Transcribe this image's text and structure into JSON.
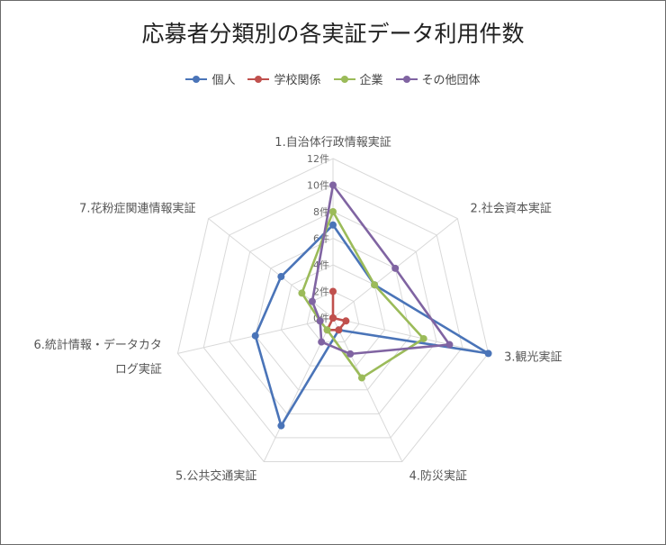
{
  "chart_data": {
    "type": "radar",
    "title": "応募者分類別の各実証データ利用件数",
    "categories": [
      [
        "1.自治体行政情報実証"
      ],
      [
        "2.社会資本実証"
      ],
      [
        "3.観光実証"
      ],
      [
        "4.防災実証"
      ],
      [
        "5.公共交通実証"
      ],
      [
        "6.統計情報・データカタ",
        "ログ実証"
      ],
      [
        "7.花粉症関連情報実証"
      ]
    ],
    "tick_labels": [
      "0件",
      "2件",
      "4件",
      "6件",
      "8件",
      "10件",
      "12件"
    ],
    "rlim": [
      0,
      12
    ],
    "grid": true,
    "legend_position": "top",
    "series": [
      {
        "name": "個人",
        "color": "#4a74b8",
        "values": [
          7,
          4,
          12,
          1,
          9,
          6,
          5
        ]
      },
      {
        "name": "学校関係",
        "color": "#c0504d",
        "values": [
          2,
          0,
          1,
          1,
          1,
          0,
          0
        ]
      },
      {
        "name": "企業",
        "color": "#9bbb59",
        "values": [
          8,
          4,
          7,
          5,
          1,
          1,
          3
        ]
      },
      {
        "name": "その他団体",
        "color": "#8064a2",
        "values": [
          10,
          6,
          9,
          3,
          2,
          1,
          2
        ]
      }
    ]
  }
}
